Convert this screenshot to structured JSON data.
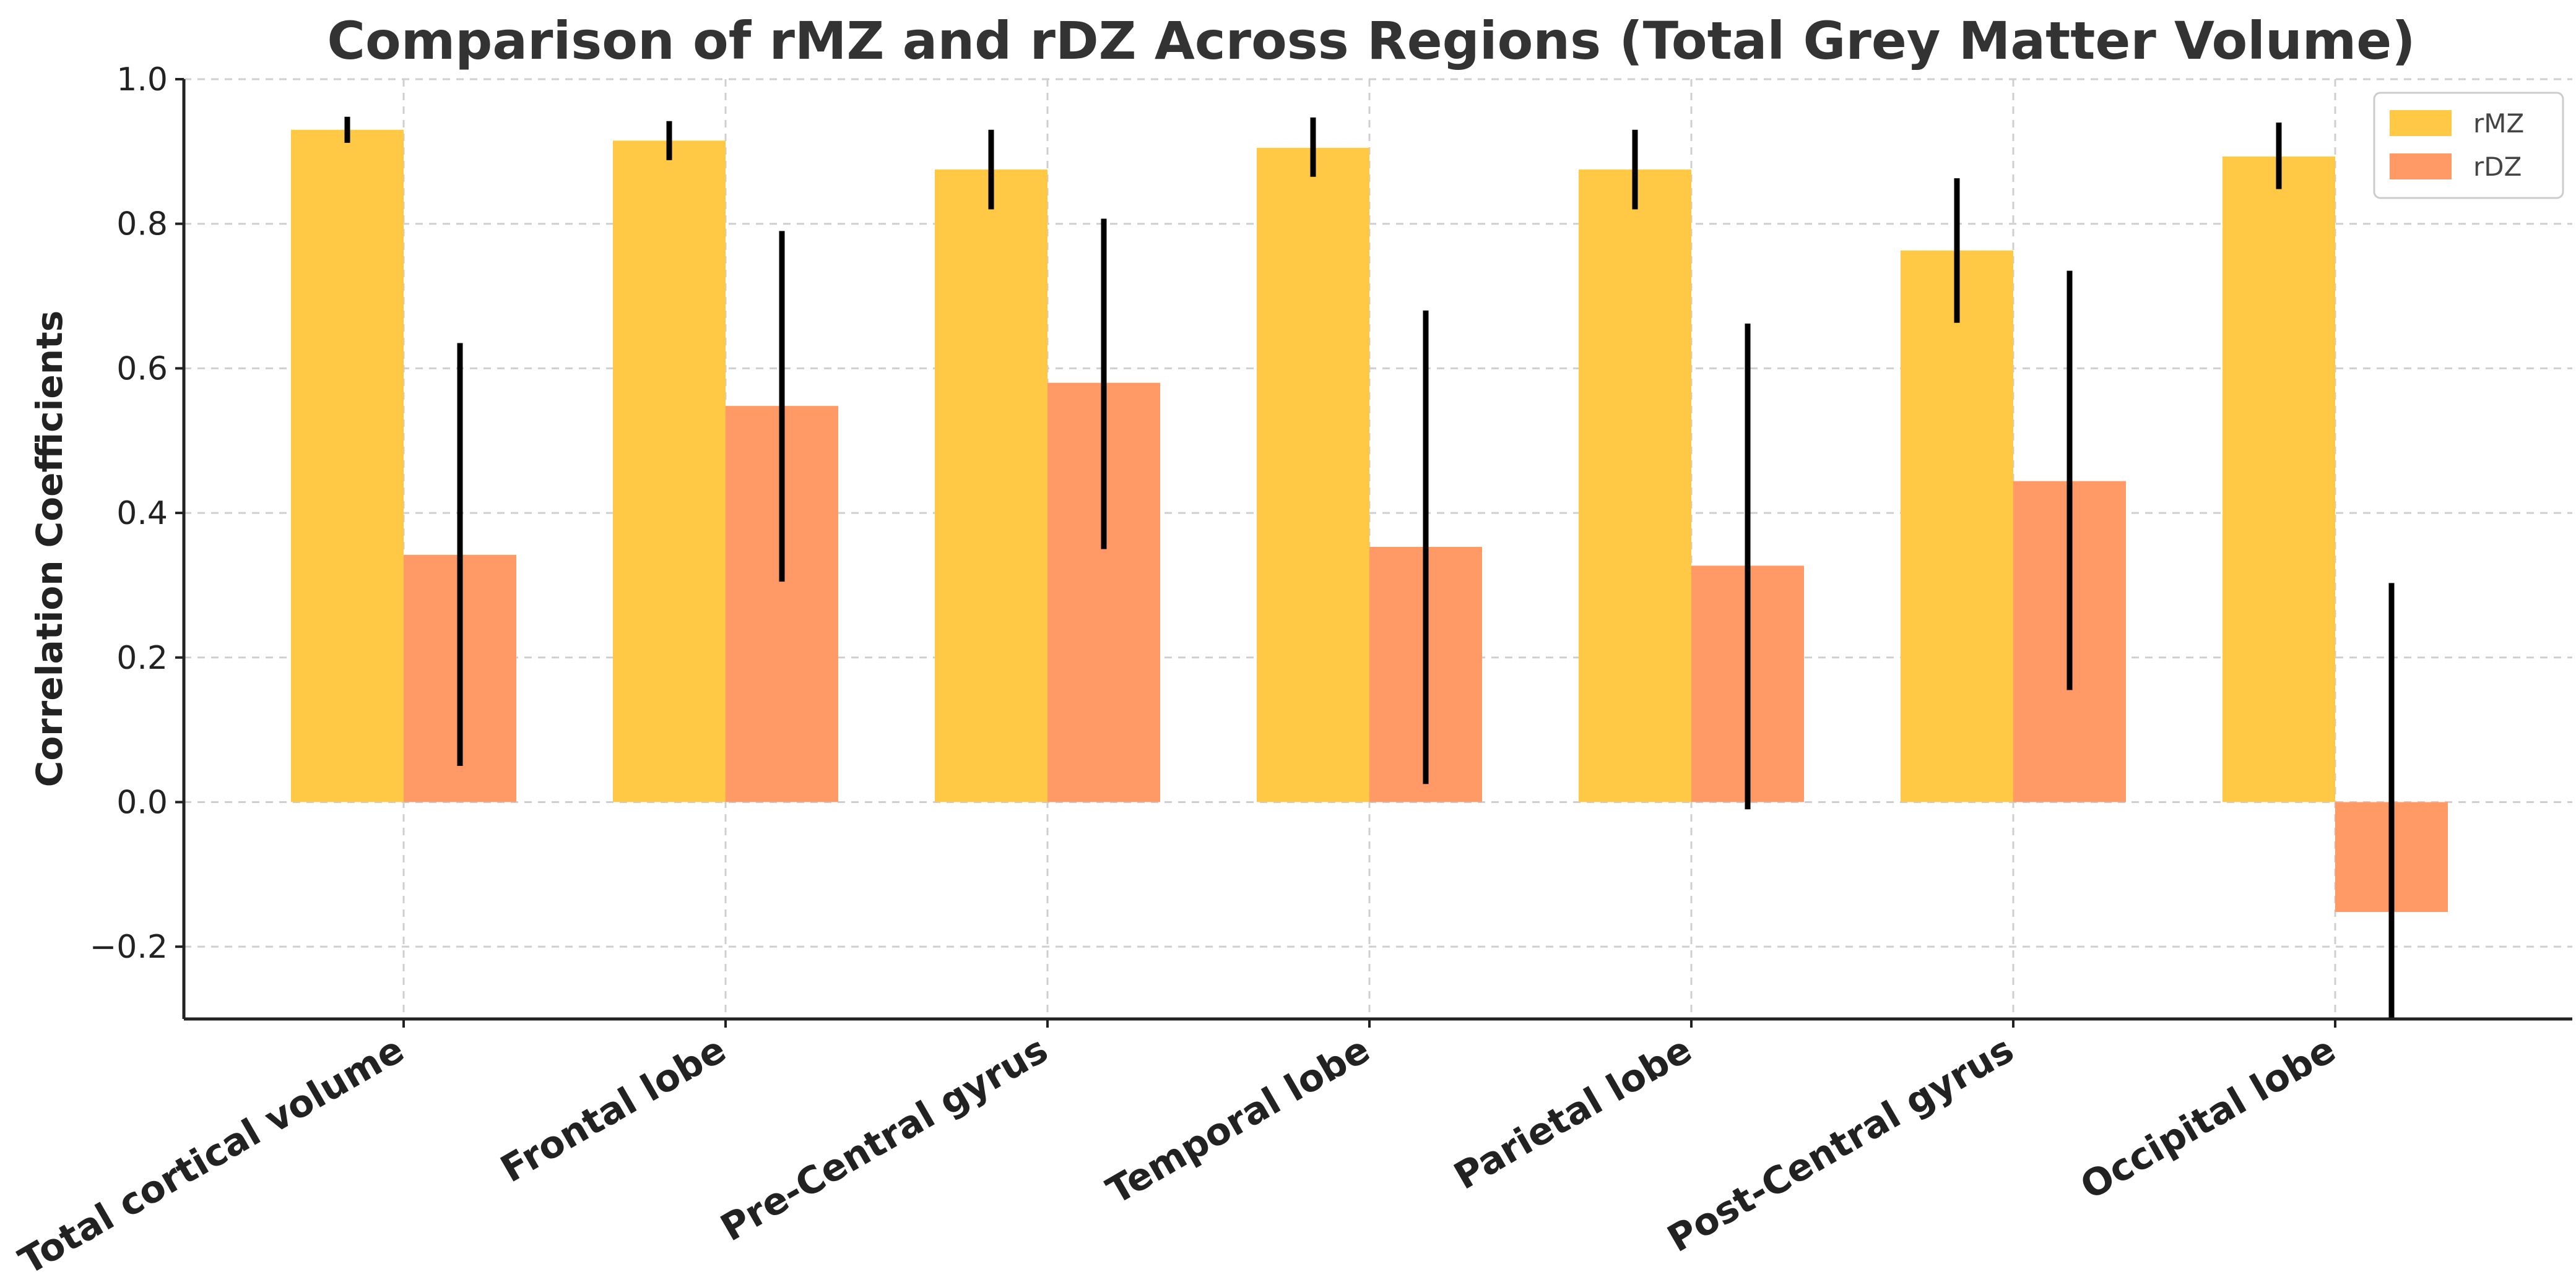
{
  "chart_data": {
    "type": "bar",
    "title": "Comparison of rMZ and rDZ Across Regions (Total Grey Matter Volume)",
    "xlabel": "",
    "ylabel": "Correlation Coefficients",
    "ylim": [
      -0.3,
      1.0
    ],
    "yticks": [
      -0.2,
      0.0,
      0.2,
      0.4,
      0.6,
      0.8,
      1.0
    ],
    "ytick_labels": [
      "−0.2",
      "0.0",
      "0.2",
      "0.4",
      "0.6",
      "0.8",
      "1.0"
    ],
    "grid": true,
    "legend_position": "top-right",
    "categories": [
      "Total cortical volume",
      "Frontal lobe",
      "Pre-Central gyrus",
      "Temporal lobe",
      "Parietal lobe",
      "Post-Central gyrus",
      "Occipital lobe"
    ],
    "series": [
      {
        "name": "rMZ",
        "color": "#FFC845",
        "values": [
          0.93,
          0.915,
          0.875,
          0.905,
          0.875,
          0.763,
          0.893
        ],
        "error_low": [
          0.912,
          0.888,
          0.82,
          0.865,
          0.82,
          0.663,
          0.848
        ],
        "error_high": [
          0.948,
          0.942,
          0.93,
          0.947,
          0.93,
          0.863,
          0.94
        ]
      },
      {
        "name": "rDZ",
        "color": "#FF9966",
        "values": [
          0.342,
          0.548,
          0.58,
          0.353,
          0.327,
          0.444,
          -0.152
        ],
        "error_low": [
          0.05,
          0.305,
          0.35,
          0.025,
          -0.01,
          0.155,
          -0.3
        ],
        "error_high": [
          0.635,
          0.79,
          0.807,
          0.68,
          0.662,
          0.735,
          0.303
        ]
      }
    ]
  }
}
